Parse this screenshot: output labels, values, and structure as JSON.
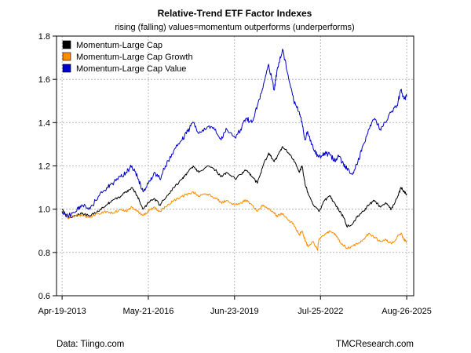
{
  "chart_data": {
    "type": "line",
    "title": "Relative-Trend ETF Factor Indexes",
    "subtitle": "rising (falling) values=momentum outperforms (underperforms)",
    "xlabel": "",
    "ylabel": "",
    "ylim": [
      0.6,
      1.8
    ],
    "y_ticks": [
      0.6,
      0.8,
      1.0,
      1.2,
      1.4,
      1.6,
      1.8
    ],
    "y_tick_labels": [
      "0.6",
      "0.8",
      "1.0",
      "1.2",
      "1.4",
      "1.6",
      "1.8"
    ],
    "xlim": [
      2013.1,
      2025.9
    ],
    "x_ticks": [
      2013.3,
      2016.39,
      2019.48,
      2022.56,
      2025.65
    ],
    "x_tick_labels": [
      "Apr-19-2013",
      "May-21-2016",
      "Jun-23-2019",
      "Jul-25-2022",
      "Aug-26-2025"
    ],
    "grid": true,
    "legend_position": "top-left",
    "series": [
      {
        "name": "Momentum-Large Cap",
        "color": "#000000",
        "points": [
          [
            2013.3,
            1.0
          ],
          [
            2013.5,
            0.96
          ],
          [
            2013.8,
            0.97
          ],
          [
            2014.0,
            0.98
          ],
          [
            2014.3,
            0.97
          ],
          [
            2014.6,
            0.99
          ],
          [
            2014.9,
            1.02
          ],
          [
            2015.1,
            1.04
          ],
          [
            2015.4,
            1.06
          ],
          [
            2015.6,
            1.08
          ],
          [
            2015.8,
            1.1
          ],
          [
            2016.0,
            1.06
          ],
          [
            2016.2,
            1.0
          ],
          [
            2016.4,
            1.03
          ],
          [
            2016.6,
            1.05
          ],
          [
            2016.8,
            1.02
          ],
          [
            2017.0,
            1.05
          ],
          [
            2017.3,
            1.1
          ],
          [
            2017.6,
            1.14
          ],
          [
            2017.8,
            1.17
          ],
          [
            2018.0,
            1.2
          ],
          [
            2018.2,
            1.17
          ],
          [
            2018.5,
            1.2
          ],
          [
            2018.8,
            1.18
          ],
          [
            2019.0,
            1.15
          ],
          [
            2019.2,
            1.17
          ],
          [
            2019.5,
            1.14
          ],
          [
            2019.7,
            1.16
          ],
          [
            2019.9,
            1.18
          ],
          [
            2020.1,
            1.15
          ],
          [
            2020.3,
            1.12
          ],
          [
            2020.5,
            1.2
          ],
          [
            2020.7,
            1.26
          ],
          [
            2020.9,
            1.22
          ],
          [
            2021.0,
            1.24
          ],
          [
            2021.2,
            1.29
          ],
          [
            2021.4,
            1.26
          ],
          [
            2021.6,
            1.23
          ],
          [
            2021.8,
            1.17
          ],
          [
            2021.9,
            1.2
          ],
          [
            2022.0,
            1.12
          ],
          [
            2022.1,
            1.08
          ],
          [
            2022.3,
            1.02
          ],
          [
            2022.5,
            0.99
          ],
          [
            2022.7,
            1.04
          ],
          [
            2022.9,
            1.06
          ],
          [
            2023.1,
            1.02
          ],
          [
            2023.2,
            1.0
          ],
          [
            2023.4,
            0.96
          ],
          [
            2023.5,
            0.92
          ],
          [
            2023.7,
            0.93
          ],
          [
            2023.9,
            0.97
          ],
          [
            2024.1,
            0.99
          ],
          [
            2024.3,
            1.02
          ],
          [
            2024.5,
            1.04
          ],
          [
            2024.7,
            1.01
          ],
          [
            2024.9,
            1.03
          ],
          [
            2025.1,
            1.0
          ],
          [
            2025.3,
            1.05
          ],
          [
            2025.45,
            1.1
          ],
          [
            2025.55,
            1.08
          ],
          [
            2025.65,
            1.07
          ]
        ]
      },
      {
        "name": "Momentum-Large Cap Growth",
        "color": "#ff8c00",
        "points": [
          [
            2013.3,
            0.99
          ],
          [
            2013.5,
            0.96
          ],
          [
            2013.8,
            0.97
          ],
          [
            2014.0,
            0.97
          ],
          [
            2014.3,
            0.96
          ],
          [
            2014.6,
            0.98
          ],
          [
            2014.9,
            0.99
          ],
          [
            2015.1,
            0.98
          ],
          [
            2015.4,
            1.0
          ],
          [
            2015.6,
            0.99
          ],
          [
            2015.8,
            1.01
          ],
          [
            2016.0,
            0.99
          ],
          [
            2016.2,
            0.97
          ],
          [
            2016.4,
            0.99
          ],
          [
            2016.6,
            1.01
          ],
          [
            2016.8,
            0.99
          ],
          [
            2017.0,
            1.01
          ],
          [
            2017.3,
            1.04
          ],
          [
            2017.6,
            1.06
          ],
          [
            2017.8,
            1.07
          ],
          [
            2018.0,
            1.08
          ],
          [
            2018.2,
            1.06
          ],
          [
            2018.5,
            1.07
          ],
          [
            2018.8,
            1.05
          ],
          [
            2019.0,
            1.03
          ],
          [
            2019.2,
            1.04
          ],
          [
            2019.5,
            1.02
          ],
          [
            2019.7,
            1.03
          ],
          [
            2019.9,
            1.04
          ],
          [
            2020.1,
            1.02
          ],
          [
            2020.3,
            0.99
          ],
          [
            2020.5,
            1.02
          ],
          [
            2020.7,
            1.0
          ],
          [
            2020.9,
            0.98
          ],
          [
            2021.0,
            0.97
          ],
          [
            2021.2,
            0.98
          ],
          [
            2021.4,
            0.95
          ],
          [
            2021.6,
            0.93
          ],
          [
            2021.8,
            0.88
          ],
          [
            2021.9,
            0.9
          ],
          [
            2022.0,
            0.86
          ],
          [
            2022.1,
            0.83
          ],
          [
            2022.3,
            0.85
          ],
          [
            2022.45,
            0.81
          ],
          [
            2022.5,
            0.86
          ],
          [
            2022.7,
            0.88
          ],
          [
            2022.9,
            0.9
          ],
          [
            2023.1,
            0.88
          ],
          [
            2023.2,
            0.86
          ],
          [
            2023.4,
            0.83
          ],
          [
            2023.5,
            0.82
          ],
          [
            2023.7,
            0.83
          ],
          [
            2023.9,
            0.84
          ],
          [
            2024.1,
            0.86
          ],
          [
            2024.3,
            0.89
          ],
          [
            2024.5,
            0.87
          ],
          [
            2024.7,
            0.85
          ],
          [
            2024.9,
            0.86
          ],
          [
            2025.1,
            0.84
          ],
          [
            2025.3,
            0.87
          ],
          [
            2025.45,
            0.89
          ],
          [
            2025.55,
            0.86
          ],
          [
            2025.65,
            0.85
          ]
        ]
      },
      {
        "name": "Momentum-Large Cap Value",
        "color": "#0000cc",
        "points": [
          [
            2013.3,
            0.99
          ],
          [
            2013.5,
            0.97
          ],
          [
            2013.8,
            0.99
          ],
          [
            2014.0,
            1.02
          ],
          [
            2014.3,
            1.0
          ],
          [
            2014.6,
            1.06
          ],
          [
            2014.9,
            1.1
          ],
          [
            2015.1,
            1.12
          ],
          [
            2015.4,
            1.15
          ],
          [
            2015.6,
            1.17
          ],
          [
            2015.8,
            1.2
          ],
          [
            2016.0,
            1.15
          ],
          [
            2016.2,
            1.08
          ],
          [
            2016.4,
            1.12
          ],
          [
            2016.6,
            1.17
          ],
          [
            2016.8,
            1.14
          ],
          [
            2017.0,
            1.2
          ],
          [
            2017.3,
            1.27
          ],
          [
            2017.6,
            1.32
          ],
          [
            2017.8,
            1.36
          ],
          [
            2018.0,
            1.4
          ],
          [
            2018.2,
            1.35
          ],
          [
            2018.5,
            1.38
          ],
          [
            2018.8,
            1.37
          ],
          [
            2019.0,
            1.32
          ],
          [
            2019.2,
            1.37
          ],
          [
            2019.5,
            1.33
          ],
          [
            2019.7,
            1.37
          ],
          [
            2019.9,
            1.42
          ],
          [
            2020.1,
            1.4
          ],
          [
            2020.3,
            1.48
          ],
          [
            2020.5,
            1.56
          ],
          [
            2020.7,
            1.67
          ],
          [
            2020.9,
            1.55
          ],
          [
            2021.0,
            1.64
          ],
          [
            2021.2,
            1.74
          ],
          [
            2021.4,
            1.62
          ],
          [
            2021.6,
            1.5
          ],
          [
            2021.8,
            1.45
          ],
          [
            2021.9,
            1.4
          ],
          [
            2022.0,
            1.32
          ],
          [
            2022.1,
            1.36
          ],
          [
            2022.3,
            1.28
          ],
          [
            2022.5,
            1.24
          ],
          [
            2022.7,
            1.26
          ],
          [
            2022.9,
            1.25
          ],
          [
            2023.1,
            1.22
          ],
          [
            2023.2,
            1.25
          ],
          [
            2023.4,
            1.2
          ],
          [
            2023.5,
            1.19
          ],
          [
            2023.7,
            1.16
          ],
          [
            2023.9,
            1.22
          ],
          [
            2024.1,
            1.3
          ],
          [
            2024.3,
            1.37
          ],
          [
            2024.5,
            1.42
          ],
          [
            2024.7,
            1.37
          ],
          [
            2024.9,
            1.4
          ],
          [
            2025.1,
            1.45
          ],
          [
            2025.3,
            1.48
          ],
          [
            2025.45,
            1.55
          ],
          [
            2025.55,
            1.51
          ],
          [
            2025.65,
            1.52
          ]
        ]
      }
    ]
  },
  "footer": {
    "source": "Data: Tiingo.com",
    "credit": "TMCResearch.com"
  }
}
